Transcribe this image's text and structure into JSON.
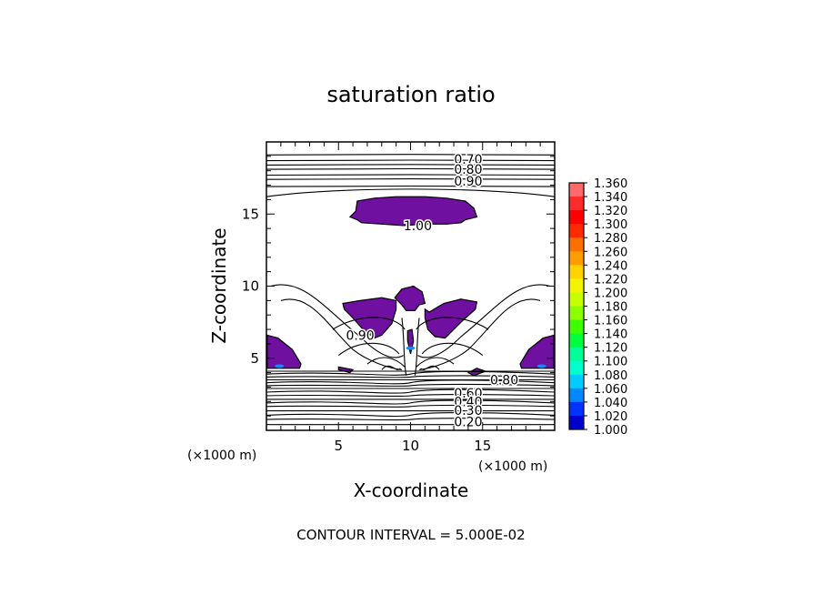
{
  "chart_data": {
    "type": "heatmap",
    "title": "saturation ratio",
    "xlabel": "X-coordinate",
    "ylabel": "Z-coordinate",
    "x_unit": "(×1000 m)",
    "z_unit": "(×1000 m)",
    "xlim": [
      0,
      20
    ],
    "zlim": [
      0,
      20
    ],
    "x_ticks": [
      5,
      10,
      15
    ],
    "z_ticks": [
      5,
      10,
      15
    ],
    "footer": "CONTOUR INTERVAL = 5.000E-02",
    "contour_labels": [
      {
        "text": "0.70",
        "x": 14.0,
        "z": 18.8
      },
      {
        "text": "0.80",
        "x": 14.0,
        "z": 18.1
      },
      {
        "text": "0.90",
        "x": 14.0,
        "z": 17.3
      },
      {
        "text": "1.00",
        "x": 10.5,
        "z": 14.2
      },
      {
        "text": "0.90",
        "x": 6.5,
        "z": 6.6
      },
      {
        "text": "0.80",
        "x": 16.5,
        "z": 3.5
      },
      {
        "text": "0.60",
        "x": 14.0,
        "z": 2.6
      },
      {
        "text": "0.40",
        "x": 14.0,
        "z": 2.0
      },
      {
        "text": "0.30",
        "x": 14.0,
        "z": 1.4
      },
      {
        "text": "0.20",
        "x": 14.0,
        "z": 0.6
      }
    ],
    "colorbar": {
      "levels": [
        "1.360",
        "1.340",
        "1.320",
        "1.300",
        "1.280",
        "1.260",
        "1.240",
        "1.220",
        "1.200",
        "1.180",
        "1.160",
        "1.140",
        "1.120",
        "1.100",
        "1.080",
        "1.060",
        "1.040",
        "1.020",
        "1.000"
      ],
      "colors": [
        "#ff6a6a",
        "#ff2a2a",
        "#ff0000",
        "#ff2a00",
        "#ff6f00",
        "#ff9c00",
        "#ffd200",
        "#f4f400",
        "#c8ff00",
        "#8cff00",
        "#3cff00",
        "#00ff3c",
        "#00ff99",
        "#00ffcc",
        "#00ccff",
        "#0088ff",
        "#0033ff",
        "#0000cc",
        "#3a00b0"
      ]
    },
    "fill_color": "#7010a0",
    "light_blue": "#0090ff"
  }
}
